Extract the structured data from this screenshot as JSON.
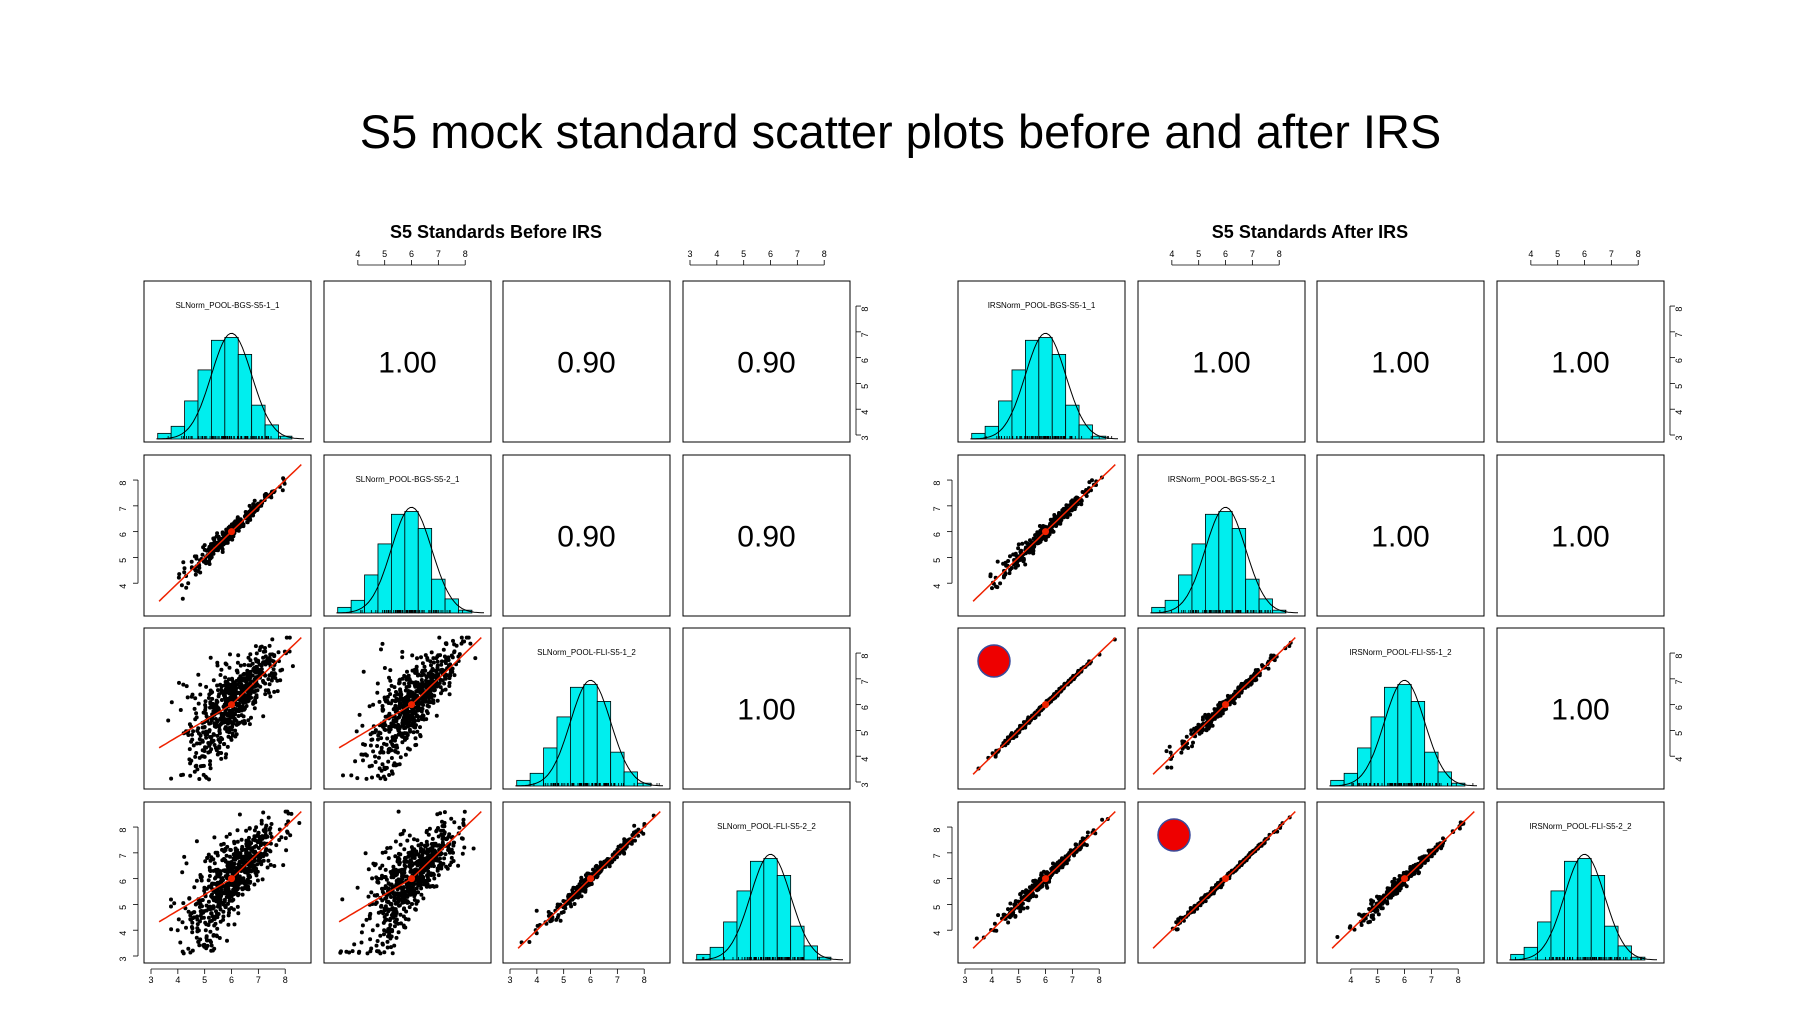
{
  "slide_title": "S5 mock standard scatter plots before and after IRS",
  "chart_data": [
    {
      "type": "scatter",
      "title": "S5 Standards Before IRS",
      "variables": [
        "SLNorm_POOL-BGS-S5-1_1",
        "SLNorm_POOL-BGS-S5-2_1",
        "SLNorm_POOL-FLI-S5-1_2",
        "SLNorm_POOL-FLI-S5-2_2"
      ],
      "correlations": [
        {
          "row": 1,
          "col": 2,
          "value": "1.00"
        },
        {
          "row": 1,
          "col": 3,
          "value": "0.90"
        },
        {
          "row": 1,
          "col": 4,
          "value": "0.90"
        },
        {
          "row": 2,
          "col": 3,
          "value": "0.90"
        },
        {
          "row": 2,
          "col": 4,
          "value": "0.90"
        },
        {
          "row": 3,
          "col": 4,
          "value": "1.00"
        }
      ],
      "scatter_spread": [
        {
          "row": 2,
          "col": 1,
          "spread": 0.12
        },
        {
          "row": 3,
          "col": 1,
          "spread": 0.55
        },
        {
          "row": 3,
          "col": 2,
          "spread": 0.55
        },
        {
          "row": 4,
          "col": 1,
          "spread": 0.55
        },
        {
          "row": 4,
          "col": 2,
          "spread": 0.55
        },
        {
          "row": 4,
          "col": 3,
          "spread": 0.1
        }
      ],
      "axis_range": [
        3,
        8.7
      ],
      "histogram": {
        "bins": [
          3.5,
          4,
          4.5,
          5,
          5.5,
          6,
          6.5,
          7,
          7.5,
          8
        ],
        "heights": [
          0.04,
          0.09,
          0.27,
          0.49,
          0.7,
          0.72,
          0.6,
          0.24,
          0.1,
          0.02
        ]
      },
      "top_axis_ticks": [
        "4",
        "5",
        "6",
        "7",
        "8"
      ],
      "top_axis_ticks_wide": [
        "3",
        "4",
        "5",
        "6",
        "7",
        "8"
      ],
      "right_axis_ticks": [
        "3",
        "4",
        "5",
        "6",
        "7",
        "8"
      ],
      "left_axis_ticks": [
        "4",
        "5",
        "6",
        "7",
        "8"
      ],
      "left_axis_ticks_wide": [
        "3",
        "4",
        "5",
        "6",
        "7",
        "8"
      ],
      "bottom_axis_ticks": [
        "3",
        "4",
        "5",
        "6",
        "7",
        "8"
      ]
    },
    {
      "type": "scatter",
      "title": "S5 Standards After IRS",
      "variables": [
        "IRSNorm_POOL-BGS-S5-1_1",
        "IRSNorm_POOL-BGS-S5-2_1",
        "IRSNorm_POOL-FLI-S5-1_2",
        "IRSNorm_POOL-FLI-S5-2_2"
      ],
      "correlations": [
        {
          "row": 1,
          "col": 2,
          "value": "1.00"
        },
        {
          "row": 1,
          "col": 3,
          "value": "1.00"
        },
        {
          "row": 1,
          "col": 4,
          "value": "1.00"
        },
        {
          "row": 2,
          "col": 3,
          "value": "1.00"
        },
        {
          "row": 2,
          "col": 4,
          "value": "1.00"
        },
        {
          "row": 3,
          "col": 4,
          "value": "1.00"
        }
      ],
      "scatter_spread": [
        {
          "row": 2,
          "col": 1,
          "spread": 0.12
        },
        {
          "row": 3,
          "col": 1,
          "spread": 0.04
        },
        {
          "row": 3,
          "col": 2,
          "spread": 0.1
        },
        {
          "row": 4,
          "col": 1,
          "spread": 0.1
        },
        {
          "row": 4,
          "col": 2,
          "spread": 0.04
        },
        {
          "row": 4,
          "col": 3,
          "spread": 0.1
        }
      ],
      "highlighted_panels": [
        {
          "row": 3,
          "col": 1
        },
        {
          "row": 4,
          "col": 2
        }
      ],
      "highlight_color": "#ee0000",
      "axis_range": [
        3,
        8.7
      ],
      "histogram": {
        "bins": [
          3.5,
          4,
          4.5,
          5,
          5.5,
          6,
          6.5,
          7,
          7.5,
          8
        ],
        "heights": [
          0.04,
          0.09,
          0.27,
          0.49,
          0.7,
          0.72,
          0.6,
          0.24,
          0.1,
          0.02
        ]
      },
      "top_axis_ticks": [
        "4",
        "5",
        "6",
        "7",
        "8"
      ],
      "top_axis_ticks_wide": [
        "4",
        "5",
        "6",
        "7",
        "8"
      ],
      "right_axis_ticks": [
        "3",
        "4",
        "5",
        "6",
        "7",
        "8"
      ],
      "right_axis_ticks_row3": [
        "4",
        "5",
        "6",
        "7",
        "8"
      ],
      "left_axis_ticks": [
        "4",
        "5",
        "6",
        "7",
        "8"
      ],
      "left_axis_ticks_wide": [
        "4",
        "5",
        "6",
        "7",
        "8"
      ],
      "bottom_axis_ticks": [
        "3",
        "4",
        "5",
        "6",
        "7",
        "8"
      ],
      "bottom_axis_ticks_col3": [
        "4",
        "5",
        "6",
        "7",
        "8"
      ]
    }
  ],
  "colors": {
    "histogram_fill": "#00eeee",
    "fit_line": "#ee2200",
    "points": "#000000",
    "highlight": "#ee0000"
  }
}
